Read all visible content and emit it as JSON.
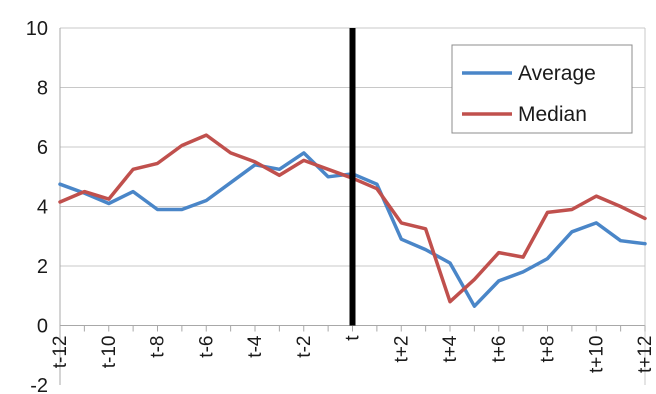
{
  "chart_data": {
    "type": "line",
    "x": [
      "t-12",
      "t-11",
      "t-10",
      "t-9",
      "t-8",
      "t-7",
      "t-6",
      "t-5",
      "t-4",
      "t-3",
      "t-2",
      "t-1",
      "t",
      "t+1",
      "t+2",
      "t+3",
      "t+4",
      "t+5",
      "t+6",
      "t+7",
      "t+8",
      "t+9",
      "t+10",
      "t+11",
      "t+12"
    ],
    "x_tick_labels": [
      "t-12",
      "t-10",
      "t-8",
      "t-6",
      "t-4",
      "t-2",
      "t",
      "t+2",
      "t+4",
      "t+6",
      "t+8",
      "t+10",
      "t+12"
    ],
    "y_ticks": [
      -2,
      0,
      2,
      4,
      6,
      8,
      10
    ],
    "ylim": [
      -2,
      10
    ],
    "grid": true,
    "legend_position": "top-right",
    "event_marker": "t",
    "series": [
      {
        "name": "Average",
        "color": "#4a86c8",
        "values": [
          4.75,
          4.45,
          4.1,
          4.5,
          3.9,
          3.9,
          4.2,
          4.8,
          5.4,
          5.25,
          5.8,
          5.0,
          5.1,
          4.75,
          2.9,
          2.55,
          2.1,
          0.65,
          1.5,
          1.8,
          2.25,
          3.15,
          3.45,
          2.85,
          2.75
        ]
      },
      {
        "name": "Median",
        "color": "#c0504d",
        "values": [
          4.15,
          4.5,
          4.25,
          5.25,
          5.45,
          6.05,
          6.4,
          5.8,
          5.5,
          5.05,
          5.55,
          5.25,
          4.95,
          4.6,
          3.45,
          3.25,
          0.8,
          1.55,
          2.45,
          2.3,
          3.8,
          3.9,
          4.35,
          4.0,
          3.6
        ]
      }
    ]
  }
}
